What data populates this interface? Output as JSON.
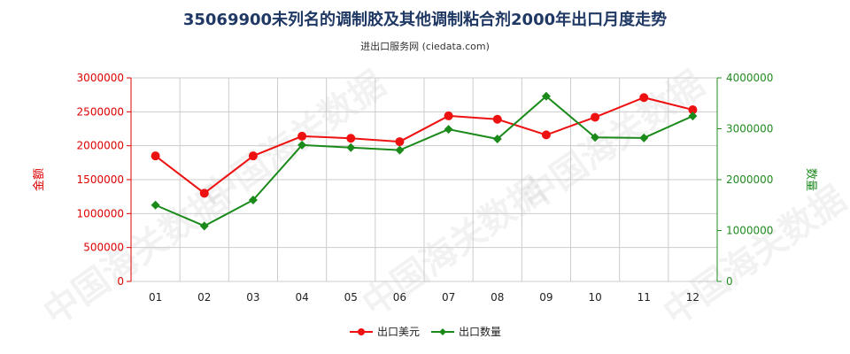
{
  "chart_data": {
    "type": "line",
    "title": "35069900未列名的调制胶及其他调制粘合剂2000年出口月度走势",
    "subtitle": "进出口服务网 (ciedata.com)",
    "categories": [
      "01",
      "02",
      "03",
      "04",
      "05",
      "06",
      "07",
      "08",
      "09",
      "10",
      "11",
      "12"
    ],
    "y_left": {
      "label": "金额",
      "range": [
        0,
        3000000
      ],
      "ticks": [
        "0",
        "500000",
        "1000000",
        "1500000",
        "2000000",
        "2500000",
        "3000000"
      ],
      "color": "#dd0000"
    },
    "y_right": {
      "label": "数量",
      "range": [
        0,
        4000000
      ],
      "ticks": [
        "0",
        "1000000",
        "2000000",
        "3000000",
        "4000000"
      ],
      "color": "#228B22"
    },
    "series": [
      {
        "name": "出口美元",
        "axis": "left",
        "color": "#ee1111",
        "marker": "circle",
        "values": [
          1850000,
          1300000,
          1850000,
          2140000,
          2110000,
          2060000,
          2440000,
          2390000,
          2160000,
          2420000,
          2710000,
          2530000
        ]
      },
      {
        "name": "出口数量",
        "axis": "right",
        "color": "#1a8a1a",
        "marker": "diamond",
        "values": [
          1500000,
          1090000,
          1600000,
          2680000,
          2630000,
          2580000,
          2990000,
          2800000,
          3640000,
          2830000,
          2820000,
          3250000
        ]
      }
    ],
    "grid": true,
    "legend": "bottom-center",
    "watermark": "中国海关数据"
  }
}
